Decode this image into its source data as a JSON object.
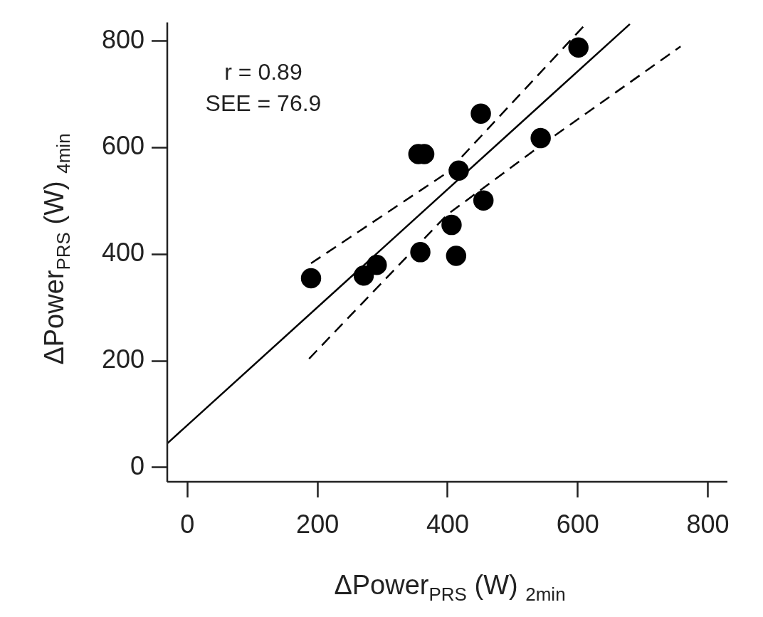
{
  "chart_data": {
    "type": "scatter",
    "xlabel": "ΔPower$_{PRS}$ (W) $_{2min}$",
    "ylabel": "ΔPower$_{PRS}$ (W) $_{4min}$",
    "annotations": [
      "r = 0.89",
      "SEE = 76.9"
    ],
    "xlim": [
      -31,
      830
    ],
    "ylim": [
      -27,
      835
    ],
    "xticks": [
      0,
      200,
      400,
      600,
      800
    ],
    "yticks": [
      0,
      200,
      400,
      600,
      800
    ],
    "grid": false,
    "legend": false,
    "series": [
      {
        "type": "scatter",
        "color": "#000000",
        "marker": "circle",
        "x": [
          190,
          271,
          291,
          355,
          364,
          417,
          451,
          601,
          543,
          455,
          406,
          413,
          358
        ],
        "values": [
          355,
          360,
          380,
          588,
          588,
          557,
          664,
          788,
          618,
          501,
          455,
          397,
          404
        ]
      },
      {
        "type": "line",
        "color": "#000000",
        "marker": "none",
        "line_style": "solid",
        "x": [
          -31,
          680
        ],
        "values": [
          45,
          832
        ]
      },
      {
        "type": "line",
        "color": "#000000",
        "marker": "none",
        "line_style": "dashed",
        "x": [
          190,
          399,
          612
        ],
        "values": [
          383,
          553,
          832
        ]
      },
      {
        "type": "line",
        "color": "#000000",
        "marker": "none",
        "line_style": "dashed",
        "x": [
          187,
          399,
          543,
          758
        ],
        "values": [
          204,
          474,
          604,
          790
        ]
      }
    ]
  }
}
